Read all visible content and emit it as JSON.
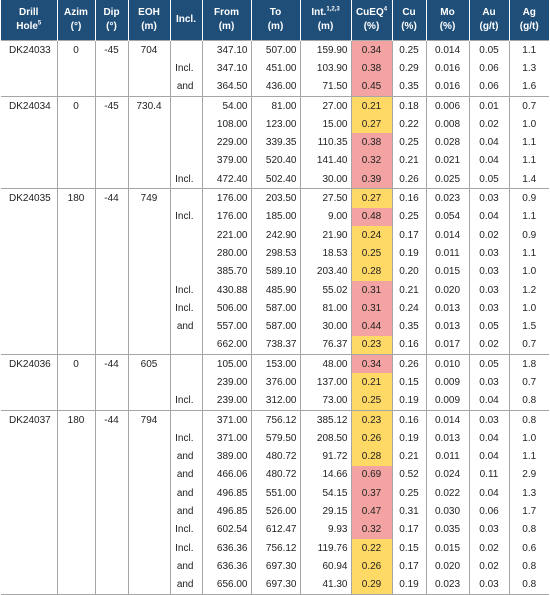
{
  "columns": [
    [
      "Drill",
      "Hole",
      "5"
    ],
    [
      "Azim",
      "(°)",
      ""
    ],
    [
      "Dip",
      "(°)",
      ""
    ],
    [
      "EOH",
      "(m)",
      ""
    ],
    [
      "Incl.",
      "",
      ""
    ],
    [
      "From",
      "(m)",
      ""
    ],
    [
      "To",
      "(m)",
      ""
    ],
    [
      "Int.",
      "(m)",
      "1,2,3"
    ],
    [
      "CuEQ",
      "(%)",
      "4"
    ],
    [
      "Cu",
      "(%)",
      ""
    ],
    [
      "Mo",
      "(%)",
      ""
    ],
    [
      "Au",
      "(g/t)",
      ""
    ],
    [
      "Ag",
      "(g/t)",
      ""
    ]
  ],
  "colors": {
    "header_bg": "#1f4e79",
    "cueq_high": "#f4a3a3",
    "cueq_low": "#ffd966"
  },
  "holes": [
    {
      "hole": "DK24033",
      "azim": "0",
      "dip": "-45",
      "eoh": "704",
      "rows": [
        {
          "incl": "",
          "from": "347.10",
          "to": "507.00",
          "int": "159.90",
          "cueq": "0.34",
          "hl": "hi",
          "cu": "0.25",
          "mo": "0.014",
          "au": "0.05",
          "ag": "1.1"
        },
        {
          "incl": "Incl.",
          "from": "347.10",
          "to": "451.00",
          "int": "103.90",
          "cueq": "0.38",
          "hl": "hi",
          "cu": "0.29",
          "mo": "0.016",
          "au": "0.06",
          "ag": "1.3"
        },
        {
          "incl": "and",
          "from": "364.50",
          "to": "436.00",
          "int": "71.50",
          "cueq": "0.45",
          "hl": "hi",
          "cu": "0.35",
          "mo": "0.016",
          "au": "0.06",
          "ag": "1.6"
        }
      ]
    },
    {
      "hole": "DK24034",
      "azim": "0",
      "dip": "-45",
      "eoh": "730.4",
      "rows": [
        {
          "incl": "",
          "from": "54.00",
          "to": "81.00",
          "int": "27.00",
          "cueq": "0.21",
          "hl": "lo",
          "cu": "0.18",
          "mo": "0.006",
          "au": "0.01",
          "ag": "0.7"
        },
        {
          "incl": "",
          "from": "108.00",
          "to": "123.00",
          "int": "15.00",
          "cueq": "0.27",
          "hl": "lo",
          "cu": "0.22",
          "mo": "0.008",
          "au": "0.02",
          "ag": "1.0"
        },
        {
          "incl": "",
          "from": "229.00",
          "to": "339.35",
          "int": "110.35",
          "cueq": "0.38",
          "hl": "hi",
          "cu": "0.25",
          "mo": "0.028",
          "au": "0.04",
          "ag": "1.1"
        },
        {
          "incl": "",
          "from": "379.00",
          "to": "520.40",
          "int": "141.40",
          "cueq": "0.32",
          "hl": "hi",
          "cu": "0.21",
          "mo": "0.021",
          "au": "0.04",
          "ag": "1.1"
        },
        {
          "incl": "Incl.",
          "from": "472.40",
          "to": "502.40",
          "int": "30.00",
          "cueq": "0.39",
          "hl": "hi",
          "cu": "0.26",
          "mo": "0.025",
          "au": "0.05",
          "ag": "1.4"
        }
      ]
    },
    {
      "hole": "DK24035",
      "azim": "180",
      "dip": "-44",
      "eoh": "749",
      "rows": [
        {
          "incl": "",
          "from": "176.00",
          "to": "203.50",
          "int": "27.50",
          "cueq": "0.27",
          "hl": "lo",
          "cu": "0.16",
          "mo": "0.023",
          "au": "0.03",
          "ag": "0.9"
        },
        {
          "incl": "Incl.",
          "from": "176.00",
          "to": "185.00",
          "int": "9.00",
          "cueq": "0.48",
          "hl": "hi",
          "cu": "0.25",
          "mo": "0.054",
          "au": "0.04",
          "ag": "1.1"
        },
        {
          "incl": "",
          "from": "221.00",
          "to": "242.90",
          "int": "21.90",
          "cueq": "0.24",
          "hl": "lo",
          "cu": "0.17",
          "mo": "0.014",
          "au": "0.02",
          "ag": "0.9"
        },
        {
          "incl": "",
          "from": "280.00",
          "to": "298.53",
          "int": "18.53",
          "cueq": "0.25",
          "hl": "lo",
          "cu": "0.19",
          "mo": "0.011",
          "au": "0.03",
          "ag": "1.1"
        },
        {
          "incl": "",
          "from": "385.70",
          "to": "589.10",
          "int": "203.40",
          "cueq": "0.28",
          "hl": "lo",
          "cu": "0.20",
          "mo": "0.015",
          "au": "0.03",
          "ag": "1.0"
        },
        {
          "incl": "Incl.",
          "from": "430.88",
          "to": "485.90",
          "int": "55.02",
          "cueq": "0.31",
          "hl": "hi",
          "cu": "0.21",
          "mo": "0.020",
          "au": "0.03",
          "ag": "1.2"
        },
        {
          "incl": "Incl.",
          "from": "506.00",
          "to": "587.00",
          "int": "81.00",
          "cueq": "0.31",
          "hl": "hi",
          "cu": "0.24",
          "mo": "0.013",
          "au": "0.03",
          "ag": "1.0"
        },
        {
          "incl": "and",
          "from": "557.00",
          "to": "587.00",
          "int": "30.00",
          "cueq": "0.44",
          "hl": "hi",
          "cu": "0.35",
          "mo": "0.013",
          "au": "0.05",
          "ag": "1.5"
        },
        {
          "incl": "",
          "from": "662.00",
          "to": "738.37",
          "int": "76.37",
          "cueq": "0.23",
          "hl": "lo",
          "cu": "0.16",
          "mo": "0.017",
          "au": "0.02",
          "ag": "0.7"
        }
      ]
    },
    {
      "hole": "DK24036",
      "azim": "0",
      "dip": "-44",
      "eoh": "605",
      "rows": [
        {
          "incl": "",
          "from": "105.00",
          "to": "153.00",
          "int": "48.00",
          "cueq": "0.34",
          "hl": "hi",
          "cu": "0.26",
          "mo": "0.010",
          "au": "0.05",
          "ag": "1.8"
        },
        {
          "incl": "",
          "from": "239.00",
          "to": "376.00",
          "int": "137.00",
          "cueq": "0.21",
          "hl": "lo",
          "cu": "0.15",
          "mo": "0.009",
          "au": "0.03",
          "ag": "0.7"
        },
        {
          "incl": "Incl.",
          "from": "239.00",
          "to": "312.00",
          "int": "73.00",
          "cueq": "0.25",
          "hl": "lo",
          "cu": "0.19",
          "mo": "0.009",
          "au": "0.04",
          "ag": "0.8"
        }
      ]
    },
    {
      "hole": "DK24037",
      "azim": "180",
      "dip": "-44",
      "eoh": "794",
      "rows": [
        {
          "incl": "",
          "from": "371.00",
          "to": "756.12",
          "int": "385.12",
          "cueq": "0.23",
          "hl": "lo",
          "cu": "0.16",
          "mo": "0.014",
          "au": "0.03",
          "ag": "0.8"
        },
        {
          "incl": "Incl.",
          "from": "371.00",
          "to": "579.50",
          "int": "208.50",
          "cueq": "0.26",
          "hl": "lo",
          "cu": "0.19",
          "mo": "0.013",
          "au": "0.04",
          "ag": "1.0"
        },
        {
          "incl": "and",
          "from": "389.00",
          "to": "480.72",
          "int": "91.72",
          "cueq": "0.28",
          "hl": "lo",
          "cu": "0.21",
          "mo": "0.011",
          "au": "0.04",
          "ag": "1.1"
        },
        {
          "incl": "and",
          "from": "466.06",
          "to": "480.72",
          "int": "14.66",
          "cueq": "0.69",
          "hl": "hi",
          "cu": "0.52",
          "mo": "0.024",
          "au": "0.11",
          "ag": "2.9"
        },
        {
          "incl": "and",
          "from": "496.85",
          "to": "551.00",
          "int": "54.15",
          "cueq": "0.37",
          "hl": "hi",
          "cu": "0.25",
          "mo": "0.022",
          "au": "0.04",
          "ag": "1.3"
        },
        {
          "incl": "and",
          "from": "496.85",
          "to": "526.00",
          "int": "29.15",
          "cueq": "0.47",
          "hl": "hi",
          "cu": "0.31",
          "mo": "0.030",
          "au": "0.06",
          "ag": "1.7"
        },
        {
          "incl": "Incl.",
          "from": "602.54",
          "to": "612.47",
          "int": "9.93",
          "cueq": "0.32",
          "hl": "hi",
          "cu": "0.17",
          "mo": "0.035",
          "au": "0.03",
          "ag": "0.8"
        },
        {
          "incl": "Incl.",
          "from": "636.36",
          "to": "756.12",
          "int": "119.76",
          "cueq": "0.22",
          "hl": "lo",
          "cu": "0.15",
          "mo": "0.015",
          "au": "0.02",
          "ag": "0.6"
        },
        {
          "incl": "and",
          "from": "636.36",
          "to": "697.30",
          "int": "60.94",
          "cueq": "0.26",
          "hl": "lo",
          "cu": "0.17",
          "mo": "0.020",
          "au": "0.02",
          "ag": "0.8"
        },
        {
          "incl": "and",
          "from": "656.00",
          "to": "697.30",
          "int": "41.30",
          "cueq": "0.29",
          "hl": "lo",
          "cu": "0.19",
          "mo": "0.023",
          "au": "0.03",
          "ag": "0.8"
        }
      ]
    }
  ]
}
